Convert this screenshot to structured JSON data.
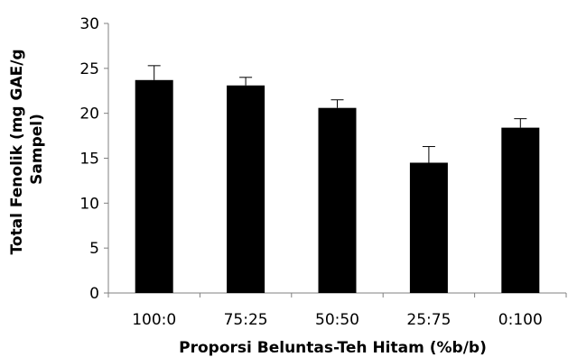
{
  "chart_data": {
    "type": "bar",
    "categories": [
      "100:0",
      "75:25",
      "50:50",
      "25:75",
      "0:100"
    ],
    "values": [
      23.7,
      23.1,
      20.6,
      14.5,
      18.4
    ],
    "errors": [
      1.6,
      0.9,
      0.9,
      1.8,
      1.0
    ],
    "xlabel": "Proporsi  Beluntas-Teh Hitam (%b/b)",
    "ylabel_lines": [
      "Total Fenolik (mg GAE/g",
      "Sampel)"
    ],
    "ylim": [
      0,
      30
    ],
    "yticks": [
      0,
      5,
      10,
      15,
      20,
      25,
      30
    ],
    "grid": false,
    "legend": "none",
    "bar_color": "#000000"
  }
}
